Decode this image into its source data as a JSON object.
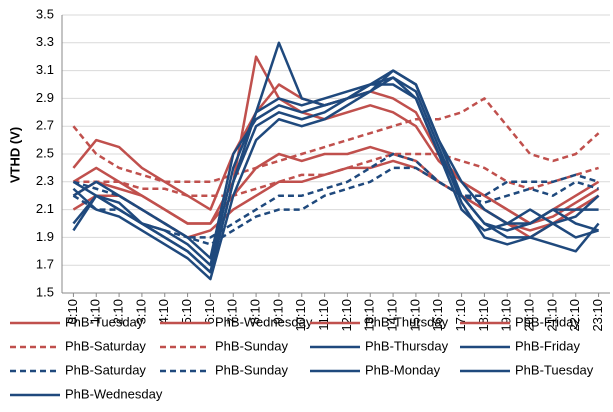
{
  "chart_data": {
    "type": "line",
    "y_label": "VTHD (V)",
    "categories": [
      "0:10",
      "1:10",
      "2:10",
      "3:10",
      "4:10",
      "5:10",
      "6:10",
      "7:10",
      "8:10",
      "9:10",
      "10:10",
      "11:10",
      "12:10",
      "13:10",
      "14:10",
      "15:10",
      "16:10",
      "17:10",
      "18:10",
      "19:10",
      "20:10",
      "21:10",
      "22:10",
      "23:10"
    ],
    "ylim": [
      1.5,
      3.5
    ],
    "yticks": [
      1.5,
      1.7,
      1.9,
      2.1,
      2.3,
      2.5,
      2.7,
      2.9,
      3.1,
      3.3,
      3.5
    ],
    "grid": true,
    "legend": "bottom",
    "series": [
      {
        "name": "PhB-Tuesday",
        "color": "#c0504d",
        "dash": "solid",
        "values": [
          2.4,
          2.6,
          2.55,
          2.4,
          2.3,
          2.2,
          2.1,
          2.5,
          2.8,
          3.0,
          2.9,
          2.85,
          2.9,
          2.95,
          2.9,
          2.8,
          2.5,
          2.3,
          2.2,
          2.1,
          2.0,
          2.1,
          2.2,
          2.3
        ]
      },
      {
        "name": "PhB-Wednesday",
        "color": "#c0504d",
        "dash": "solid",
        "values": [
          2.3,
          2.4,
          2.3,
          2.2,
          2.1,
          2.0,
          2.0,
          2.2,
          2.4,
          2.5,
          2.45,
          2.5,
          2.5,
          2.55,
          2.5,
          2.45,
          2.3,
          2.2,
          2.1,
          2.0,
          1.95,
          2.0,
          2.1,
          2.2
        ]
      },
      {
        "name": "PhB-Thursday",
        "color": "#c0504d",
        "dash": "solid",
        "values": [
          2.1,
          2.2,
          2.2,
          2.1,
          2.0,
          1.9,
          1.95,
          2.1,
          2.2,
          2.3,
          2.3,
          2.35,
          2.4,
          2.4,
          2.45,
          2.4,
          2.3,
          2.2,
          2.1,
          2.0,
          1.9,
          2.0,
          2.1,
          2.2
        ]
      },
      {
        "name": "PhB-Friday",
        "color": "#c0504d",
        "dash": "solid",
        "values": [
          2.2,
          2.3,
          2.25,
          2.2,
          2.1,
          2.0,
          2.0,
          2.3,
          3.2,
          2.9,
          2.8,
          2.75,
          2.8,
          2.85,
          2.8,
          2.7,
          2.45,
          2.3,
          2.2,
          2.1,
          2.0,
          2.05,
          2.15,
          2.25
        ]
      },
      {
        "name": "PhB-Saturday",
        "color": "#c0504d",
        "dash": "dashed",
        "values": [
          2.7,
          2.5,
          2.4,
          2.35,
          2.3,
          2.3,
          2.3,
          2.35,
          2.4,
          2.45,
          2.5,
          2.55,
          2.6,
          2.65,
          2.7,
          2.75,
          2.75,
          2.8,
          2.9,
          2.7,
          2.5,
          2.45,
          2.5,
          2.65
        ]
      },
      {
        "name": "PhB-Sunday",
        "color": "#c0504d",
        "dash": "dashed",
        "values": [
          2.3,
          2.3,
          2.3,
          2.25,
          2.25,
          2.2,
          2.2,
          2.2,
          2.25,
          2.3,
          2.35,
          2.35,
          2.4,
          2.45,
          2.5,
          2.5,
          2.5,
          2.45,
          2.4,
          2.3,
          2.25,
          2.3,
          2.35,
          2.4
        ]
      },
      {
        "name": "PhB-Thursday",
        "color": "#1f497d",
        "dash": "solid",
        "values": [
          2.3,
          2.2,
          2.1,
          2.0,
          1.9,
          1.8,
          1.65,
          2.3,
          2.7,
          2.8,
          2.75,
          2.8,
          2.9,
          3.0,
          3.05,
          2.9,
          2.5,
          2.2,
          2.0,
          1.9,
          1.9,
          1.85,
          1.8,
          2.0
        ]
      },
      {
        "name": "PhB-Friday",
        "color": "#1f497d",
        "dash": "solid",
        "values": [
          2.0,
          2.2,
          2.1,
          2.0,
          1.95,
          1.85,
          1.7,
          2.4,
          2.8,
          2.9,
          2.85,
          2.9,
          2.95,
          3.0,
          3.1,
          3.0,
          2.6,
          2.3,
          2.1,
          2.0,
          2.0,
          2.1,
          2.0,
          1.95
        ]
      },
      {
        "name": "PhB-Saturday",
        "color": "#1f497d",
        "dash": "dashed",
        "values": [
          2.3,
          2.25,
          2.2,
          2.1,
          2.0,
          1.9,
          1.9,
          2.0,
          2.1,
          2.2,
          2.2,
          2.25,
          2.3,
          2.4,
          2.5,
          2.45,
          2.3,
          2.2,
          2.2,
          2.3,
          2.3,
          2.3,
          2.35,
          2.3
        ]
      },
      {
        "name": "PhB-Sunday",
        "color": "#1f497d",
        "dash": "dashed",
        "values": [
          2.2,
          2.1,
          2.1,
          2.0,
          1.95,
          1.9,
          1.85,
          1.95,
          2.05,
          2.1,
          2.1,
          2.2,
          2.25,
          2.3,
          2.4,
          2.4,
          2.3,
          2.2,
          2.15,
          2.2,
          2.25,
          2.2,
          2.3,
          2.25
        ]
      },
      {
        "name": "PhB-Monday",
        "color": "#1f497d",
        "dash": "solid",
        "values": [
          1.95,
          2.2,
          2.15,
          2.0,
          1.9,
          1.8,
          1.65,
          2.3,
          2.8,
          3.3,
          2.9,
          2.85,
          2.9,
          2.95,
          3.1,
          3.0,
          2.6,
          2.2,
          2.0,
          1.95,
          2.0,
          2.1,
          2.1,
          2.1
        ]
      },
      {
        "name": "PhB-Tuesday",
        "color": "#1f497d",
        "dash": "solid",
        "values": [
          2.2,
          2.3,
          2.2,
          2.1,
          2.0,
          1.9,
          1.75,
          2.5,
          2.75,
          2.85,
          2.8,
          2.85,
          2.9,
          3.0,
          3.0,
          2.9,
          2.5,
          2.1,
          1.95,
          2.0,
          2.1,
          2.0,
          2.05,
          2.2
        ]
      },
      {
        "name": "PhB-Wednesday",
        "color": "#1f497d",
        "dash": "solid",
        "values": [
          2.25,
          2.1,
          2.05,
          1.95,
          1.85,
          1.75,
          1.6,
          2.2,
          2.6,
          2.75,
          2.7,
          2.75,
          2.85,
          2.95,
          3.05,
          2.95,
          2.55,
          2.15,
          1.9,
          1.85,
          1.9,
          2.0,
          1.9,
          1.95
        ]
      }
    ]
  }
}
